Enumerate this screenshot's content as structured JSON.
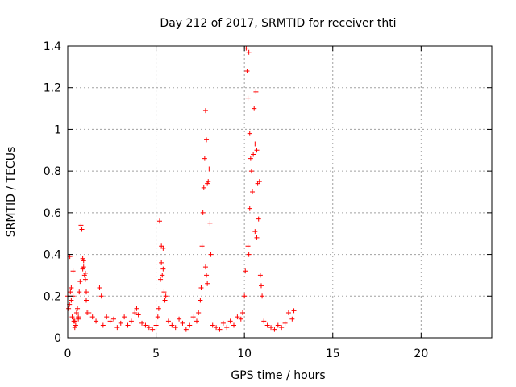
{
  "chart_data": {
    "type": "scatter",
    "title": "Day 212 of 2017, SRMTID for receiver thti",
    "xlabel": "GPS time / hours",
    "ylabel": "SRMTID / TECUs",
    "xlim": [
      0,
      24
    ],
    "ylim": [
      0,
      1.4
    ],
    "x_ticks": [
      0,
      5,
      10,
      15,
      20
    ],
    "x_tick_labels": [
      "0",
      "5",
      "10",
      "15",
      "20"
    ],
    "y_ticks": [
      0,
      0.2,
      0.4,
      0.6,
      0.8,
      1.0,
      1.2,
      1.4
    ],
    "y_tick_labels": [
      "0",
      "0.2",
      "0.4",
      "0.6",
      "0.8",
      "1",
      "1.2",
      "1.4"
    ],
    "grid": true,
    "legend": "none",
    "marker": "plus",
    "marker_color": "#ff0000",
    "series": [
      {
        "name": "SRMTID",
        "x": [
          0.0,
          0.05,
          0.1,
          0.12,
          0.15,
          0.2,
          0.25,
          0.3,
          0.35,
          0.4,
          0.45,
          0.5,
          0.55,
          0.6,
          0.65,
          0.7,
          0.75,
          0.8,
          0.85,
          0.9,
          0.95,
          1.0,
          1.05,
          1.1,
          0.2,
          0.3,
          0.4,
          0.6,
          0.85,
          0.9,
          1.0,
          1.05,
          1.2,
          1.4,
          1.6,
          1.8,
          1.9,
          2.0,
          2.2,
          2.4,
          2.6,
          2.8,
          3.0,
          3.2,
          3.4,
          3.6,
          3.8,
          3.9,
          4.0,
          4.2,
          4.4,
          4.6,
          4.8,
          5.0,
          5.1,
          5.15,
          5.2,
          5.25,
          5.3,
          5.35,
          5.4,
          5.45,
          5.5,
          5.55,
          5.3,
          5.4,
          5.7,
          5.9,
          6.1,
          6.3,
          6.5,
          6.7,
          6.9,
          7.1,
          7.3,
          7.4,
          7.5,
          7.55,
          7.6,
          7.65,
          7.7,
          7.75,
          7.8,
          7.85,
          7.9,
          7.95,
          8.0,
          8.05,
          8.1,
          7.8,
          7.85,
          7.9,
          8.2,
          8.4,
          8.6,
          8.8,
          9.0,
          9.2,
          9.4,
          9.6,
          9.8,
          9.9,
          10.0,
          10.05,
          10.1,
          10.15,
          10.2,
          10.25,
          10.3,
          10.35,
          10.4,
          10.45,
          10.5,
          10.55,
          10.6,
          10.65,
          10.7,
          10.75,
          10.8,
          10.85,
          10.9,
          10.95,
          11.0,
          10.2,
          10.25,
          10.3,
          10.6,
          10.7,
          11.1,
          11.3,
          11.5,
          11.7,
          11.9,
          12.1,
          12.3,
          12.5,
          12.7,
          12.8
        ],
        "y": [
          0.2,
          0.14,
          0.16,
          0.39,
          0.22,
          0.18,
          0.1,
          0.2,
          0.08,
          0.05,
          0.06,
          0.12,
          0.14,
          0.1,
          0.22,
          0.27,
          0.54,
          0.52,
          0.38,
          0.34,
          0.3,
          0.31,
          0.22,
          0.12,
          0.24,
          0.32,
          0.08,
          0.09,
          0.33,
          0.37,
          0.28,
          0.18,
          0.12,
          0.1,
          0.08,
          0.24,
          0.2,
          0.06,
          0.1,
          0.08,
          0.09,
          0.05,
          0.07,
          0.1,
          0.06,
          0.08,
          0.12,
          0.14,
          0.11,
          0.07,
          0.06,
          0.05,
          0.04,
          0.06,
          0.1,
          0.14,
          0.56,
          0.28,
          0.44,
          0.3,
          0.43,
          0.22,
          0.18,
          0.2,
          0.36,
          0.33,
          0.08,
          0.06,
          0.05,
          0.09,
          0.07,
          0.04,
          0.06,
          0.1,
          0.08,
          0.12,
          0.18,
          0.24,
          0.44,
          0.6,
          0.72,
          0.86,
          1.09,
          0.95,
          0.74,
          0.75,
          0.81,
          0.55,
          0.4,
          0.34,
          0.3,
          0.26,
          0.06,
          0.05,
          0.04,
          0.07,
          0.05,
          0.08,
          0.06,
          0.1,
          0.09,
          0.12,
          0.2,
          0.32,
          1.39,
          1.28,
          1.15,
          1.37,
          0.98,
          0.86,
          0.8,
          0.7,
          0.88,
          1.1,
          0.93,
          1.18,
          0.9,
          0.74,
          0.57,
          0.75,
          0.3,
          0.25,
          0.2,
          0.44,
          0.4,
          0.62,
          0.51,
          0.48,
          0.08,
          0.06,
          0.05,
          0.04,
          0.06,
          0.05,
          0.07,
          0.12,
          0.09,
          0.13
        ]
      }
    ]
  }
}
